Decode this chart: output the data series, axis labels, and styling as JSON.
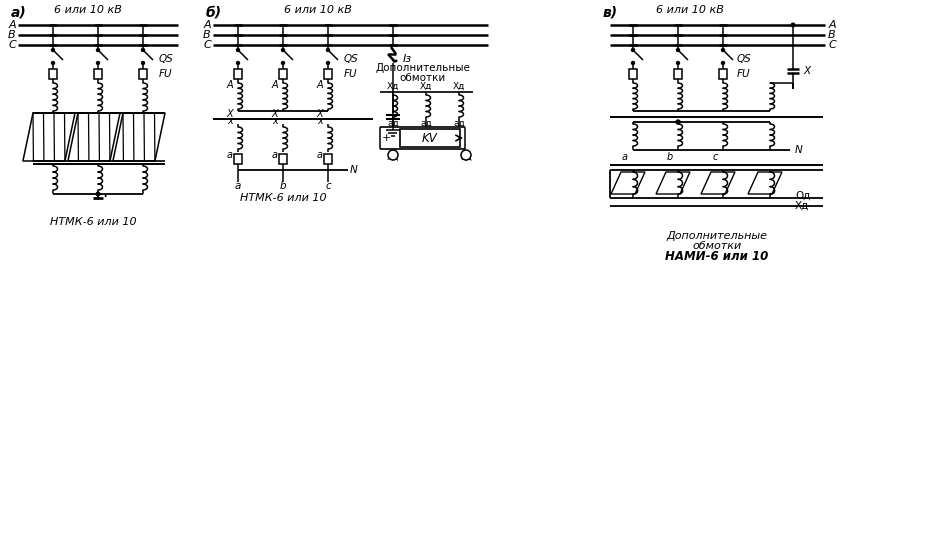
{
  "bg_color": "#ffffff",
  "lc": "#000000",
  "figsize": [
    9.41,
    5.52
  ],
  "dpi": 100,
  "sections": {
    "a": {
      "label": "а)",
      "kv": "6 или 10 кВ",
      "bottom": "НТМК-6 или 10"
    },
    "b": {
      "label": "б)",
      "kv": "6 или 10 кВ",
      "bottom": "НТМК-6 или 10",
      "dop": "Дополнительные\nобмотки",
      "iz": "Iз"
    },
    "v": {
      "label": "в)",
      "kv": "6 или 10 кВ",
      "bottom": "Дополнительные\nобмотки\nНАМИ-6 или 10"
    }
  },
  "bus_labels": [
    "А",
    "В",
    "С"
  ],
  "labels": {
    "QS": "QS",
    "FU": "FU",
    "KV": "KV",
    "N": "N",
    "X": "X"
  }
}
